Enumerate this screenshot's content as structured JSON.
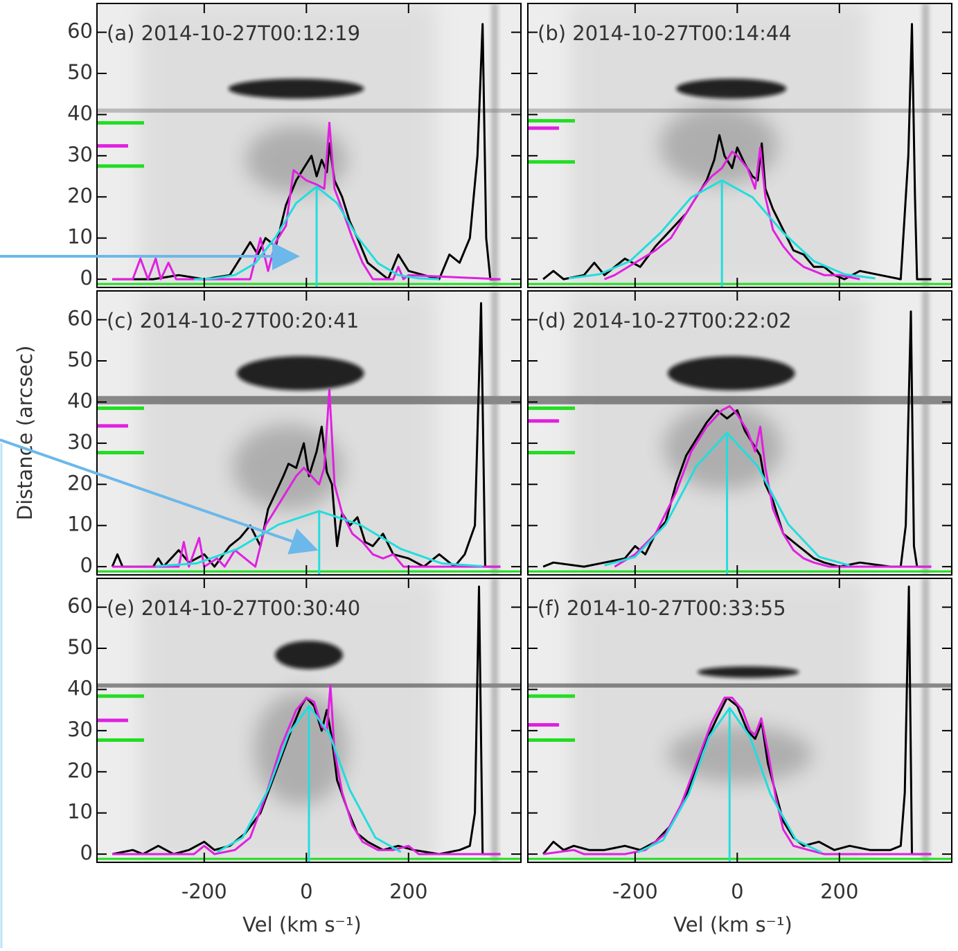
{
  "chart_data": [
    {
      "type": "line",
      "title": "(a)  2014-10-27T00:12:19",
      "xlim": [
        -410,
        420
      ],
      "ylim": [
        -2,
        67
      ],
      "xticks": [
        -200,
        0,
        200
      ],
      "yticks": [
        0,
        10,
        20,
        30,
        40,
        50,
        60
      ],
      "series": [
        {
          "color": "#000000",
          "x": [
            -380,
            -300,
            -250,
            -200,
            -150,
            -130,
            -110,
            -95,
            -80,
            -60,
            -40,
            -20,
            0,
            10,
            20,
            30,
            40,
            45,
            55,
            70,
            85,
            100,
            120,
            140,
            160,
            180,
            200,
            230,
            260,
            280,
            300,
            320,
            335,
            345,
            352,
            360,
            380
          ],
          "values": [
            0,
            0,
            1,
            0,
            1,
            5,
            9,
            6,
            10,
            8,
            18,
            24,
            28,
            30,
            25,
            29,
            26,
            33,
            24,
            20,
            14,
            10,
            4,
            2,
            0,
            6,
            2,
            1,
            0,
            6,
            4,
            10,
            30,
            62,
            10,
            0,
            0
          ]
        },
        {
          "color": "#e020e0",
          "x": [
            -380,
            -340,
            -325,
            -310,
            -295,
            -285,
            -270,
            -255,
            -110,
            -90,
            -75,
            -60,
            -40,
            -25,
            0,
            20,
            35,
            45,
            55,
            70,
            90,
            110,
            130,
            170,
            180,
            190,
            200,
            380
          ],
          "values": [
            0,
            0,
            5,
            0,
            5,
            0,
            4,
            0,
            0,
            10,
            2,
            9,
            13,
            26.5,
            24,
            23,
            22,
            38,
            22,
            17,
            10,
            4,
            0,
            0,
            3,
            0,
            1,
            0
          ]
        },
        {
          "color": "#22dddd",
          "x": [
            -220,
            -180,
            -140,
            -100,
            -60,
            -20,
            20,
            60,
            100,
            140,
            180,
            220,
            260
          ],
          "values": [
            0,
            0.2,
            1,
            3.9,
            10.3,
            18.5,
            22.5,
            18.5,
            10.3,
            3.9,
            1,
            0.2,
            0
          ]
        }
      ],
      "peak_x": 20,
      "peak_y": 22.5,
      "ref_lines": [
        {
          "color": "#22dd22",
          "y": 38
        },
        {
          "color": "#e020e0",
          "y": 32.4
        },
        {
          "color": "#22dd22",
          "y": 27.5
        }
      ]
    },
    {
      "type": "line",
      "title": "(b)  2014-10-27T00:14:44",
      "xlim": [
        -410,
        420
      ],
      "ylim": [
        -2,
        67
      ],
      "xticks": [
        -200,
        0,
        200
      ],
      "yticks": [
        0,
        10,
        20,
        30,
        40,
        50,
        60
      ],
      "series": [
        {
          "color": "#000000",
          "x": [
            -380,
            -360,
            -340,
            -300,
            -280,
            -260,
            -220,
            -190,
            -160,
            -130,
            -100,
            -80,
            -60,
            -45,
            -35,
            -25,
            -10,
            0,
            15,
            30,
            40,
            48,
            55,
            70,
            90,
            110,
            130,
            150,
            170,
            190,
            210,
            240,
            280,
            320,
            335,
            342,
            348,
            352,
            380
          ],
          "values": [
            0,
            2,
            0,
            1,
            4,
            1,
            5,
            3,
            8,
            12,
            16,
            20,
            24,
            29,
            35,
            30,
            27,
            32,
            28,
            25,
            24,
            33,
            22,
            17,
            12,
            7,
            6,
            3,
            3,
            1,
            0,
            2,
            1,
            0,
            30,
            62,
            20,
            0,
            0
          ]
        },
        {
          "color": "#e020e0",
          "x": [
            -260,
            -240,
            -200,
            -160,
            -130,
            -100,
            -70,
            -50,
            -30,
            -10,
            0,
            20,
            35,
            45,
            55,
            70,
            90,
            110,
            130,
            150,
            170,
            200,
            240
          ],
          "values": [
            0,
            1,
            4,
            7,
            10,
            16,
            22,
            25,
            27,
            31,
            30,
            27,
            22,
            32,
            20,
            12,
            8,
            5,
            3,
            2,
            1,
            1,
            0
          ]
        },
        {
          "color": "#22dddd",
          "x": [
            -330,
            -270,
            -210,
            -150,
            -90,
            -30,
            30,
            90,
            150,
            210,
            270
          ],
          "values": [
            0.2,
            1.2,
            4.4,
            11.3,
            19.9,
            24,
            19.9,
            11.3,
            4.4,
            1.2,
            0.2
          ]
        }
      ],
      "peak_x": -30,
      "peak_y": 24,
      "ref_lines": [
        {
          "color": "#22dd22",
          "y": 38.5
        },
        {
          "color": "#e020e0",
          "y": 36.7
        },
        {
          "color": "#22dd22",
          "y": 28.5
        }
      ]
    },
    {
      "type": "line",
      "title": "(c)  2014-10-27T00:20:41",
      "xlim": [
        -410,
        420
      ],
      "ylim": [
        -2,
        67
      ],
      "xticks": [
        -200,
        0,
        200
      ],
      "yticks": [
        0,
        10,
        20,
        30,
        40,
        50,
        60
      ],
      "ylabel": "Distance (arcsec)",
      "series": [
        {
          "color": "#000000",
          "x": [
            -380,
            -370,
            -360,
            -300,
            -290,
            -280,
            -250,
            -230,
            -200,
            -180,
            -150,
            -130,
            -110,
            -90,
            -75,
            -60,
            -45,
            -35,
            -20,
            -5,
            5,
            20,
            30,
            40,
            50,
            60,
            70,
            85,
            100,
            115,
            130,
            150,
            170,
            200,
            230,
            260,
            290,
            310,
            330,
            342,
            350,
            380
          ],
          "values": [
            0,
            3,
            0,
            0,
            2,
            0,
            4,
            1,
            3,
            0,
            5,
            7,
            10,
            5,
            14,
            18,
            22,
            25,
            24,
            30,
            22,
            28,
            34,
            23,
            20,
            5,
            13,
            10,
            12,
            6,
            5,
            8,
            3,
            2,
            0,
            3,
            0,
            3,
            10,
            64,
            0,
            0
          ]
        },
        {
          "color": "#e020e0",
          "x": [
            -380,
            -250,
            -240,
            -230,
            -210,
            -200,
            -175,
            -160,
            -140,
            -120,
            -100,
            -80,
            -60,
            -40,
            -20,
            -5,
            10,
            25,
            35,
            45,
            55,
            70,
            90,
            110,
            130,
            150,
            170,
            190,
            380
          ],
          "values": [
            0,
            0,
            6,
            0,
            7,
            0,
            2,
            0,
            4,
            2,
            0,
            10,
            14,
            18,
            22,
            24,
            22,
            20,
            24,
            43,
            20,
            13,
            8,
            6,
            3,
            2,
            3,
            0,
            0
          ]
        },
        {
          "color": "#22dddd",
          "x": [
            -295,
            -215,
            -135,
            -55,
            25,
            105,
            185,
            265,
            345
          ],
          "values": [
            0.1,
            0.8,
            4.3,
            10.2,
            13.5,
            10.2,
            4.3,
            0.8,
            0.1
          ]
        }
      ],
      "peak_x": 25,
      "peak_y": 13.5,
      "ref_lines": [
        {
          "color": "#22dd22",
          "y": 38.5
        },
        {
          "color": "#e020e0",
          "y": 34.2
        },
        {
          "color": "#22dd22",
          "y": 27.7
        }
      ]
    },
    {
      "type": "line",
      "title": "(d)  2014-10-27T00:22:02",
      "xlim": [
        -410,
        420
      ],
      "ylim": [
        -2,
        67
      ],
      "xticks": [
        -200,
        0,
        200
      ],
      "yticks": [
        0,
        10,
        20,
        30,
        40,
        50,
        60
      ],
      "series": [
        {
          "color": "#000000",
          "x": [
            -380,
            -360,
            -300,
            -260,
            -220,
            -200,
            -180,
            -160,
            -140,
            -120,
            -100,
            -80,
            -60,
            -40,
            -20,
            0,
            15,
            30,
            45,
            55,
            70,
            90,
            110,
            130,
            150,
            170,
            200,
            240,
            300,
            320,
            330,
            340,
            346,
            352,
            380
          ],
          "values": [
            0,
            1,
            0,
            1,
            2,
            5,
            3,
            8,
            11,
            20,
            27,
            31,
            35,
            38,
            36,
            38,
            33,
            30,
            27,
            20,
            16,
            8,
            6,
            4,
            2,
            1,
            0,
            1,
            0,
            0,
            10,
            62,
            5,
            0,
            0
          ]
        },
        {
          "color": "#e020e0",
          "x": [
            -240,
            -200,
            -160,
            -120,
            -90,
            -60,
            -30,
            -15,
            0,
            20,
            35,
            45,
            55,
            70,
            90,
            110,
            130,
            150,
            180,
            380
          ],
          "values": [
            0,
            3,
            8,
            18,
            28,
            34,
            38,
            39,
            37,
            33,
            28,
            34,
            24,
            14,
            8,
            4,
            2,
            1,
            0,
            0
          ]
        },
        {
          "color": "#22dddd",
          "x": [
            -260,
            -200,
            -140,
            -80,
            -20,
            40,
            100,
            160,
            220
          ],
          "values": [
            0.3,
            2.4,
            10.3,
            24.4,
            32.5,
            24.4,
            10.3,
            2.4,
            0.3
          ]
        }
      ],
      "peak_x": -20,
      "peak_y": 32.5,
      "ref_lines": [
        {
          "color": "#22dd22",
          "y": 38.5
        },
        {
          "color": "#e020e0",
          "y": 35.4
        },
        {
          "color": "#22dd22",
          "y": 27.7
        }
      ]
    },
    {
      "type": "line",
      "title": "(e)  2014-10-27T00:30:40",
      "xlim": [
        -410,
        420
      ],
      "ylim": [
        -2,
        67
      ],
      "xticks": [
        -200,
        0,
        200
      ],
      "yticks": [
        0,
        10,
        20,
        30,
        40,
        50,
        60
      ],
      "xlabel": "Vel (km s⁻¹)",
      "series": [
        {
          "color": "#000000",
          "x": [
            -380,
            -340,
            -320,
            -290,
            -260,
            -230,
            -200,
            -180,
            -150,
            -120,
            -90,
            -60,
            -30,
            -10,
            0,
            15,
            30,
            40,
            50,
            60,
            80,
            100,
            120,
            150,
            180,
            210,
            260,
            300,
            320,
            330,
            338,
            345,
            380
          ],
          "values": [
            0,
            1,
            0,
            2,
            0,
            1,
            3,
            1,
            2,
            5,
            10,
            20,
            30,
            36,
            38,
            36,
            30,
            35,
            28,
            18,
            11,
            5,
            3,
            1,
            2,
            1,
            0,
            1,
            2,
            10,
            65,
            0,
            0
          ]
        },
        {
          "color": "#e020e0",
          "x": [
            -380,
            -220,
            -200,
            -180,
            -140,
            -110,
            -80,
            -50,
            -20,
            0,
            15,
            30,
            40,
            47,
            55,
            70,
            90,
            110,
            140,
            170,
            200,
            220,
            380
          ],
          "values": [
            0,
            0,
            2,
            0,
            1,
            4,
            14,
            26,
            35,
            38,
            37,
            31,
            30,
            41,
            25,
            15,
            7,
            3,
            1,
            1,
            2,
            0,
            0
          ]
        },
        {
          "color": "#22dddd",
          "x": [
            -175,
            -125,
            -75,
            -35,
            5,
            45,
            85,
            135,
            185
          ],
          "values": [
            0.5,
            4,
            15.6,
            29.2,
            36,
            29.2,
            15.6,
            4,
            0.5
          ]
        }
      ],
      "peak_x": 5,
      "peak_y": 36,
      "ref_lines": [
        {
          "color": "#22dd22",
          "y": 38.4
        },
        {
          "color": "#e020e0",
          "y": 32.5
        },
        {
          "color": "#22dd22",
          "y": 27.7
        }
      ]
    },
    {
      "type": "line",
      "title": "(f)  2014-10-27T00:33:55",
      "xlim": [
        -410,
        420
      ],
      "ylim": [
        -2,
        67
      ],
      "xticks": [
        -200,
        0,
        200
      ],
      "yticks": [
        0,
        10,
        20,
        30,
        40,
        50,
        60
      ],
      "xlabel": "Vel (km s⁻¹)",
      "series": [
        {
          "color": "#000000",
          "x": [
            -380,
            -360,
            -340,
            -320,
            -290,
            -260,
            -220,
            -190,
            -160,
            -130,
            -100,
            -70,
            -40,
            -20,
            0,
            20,
            35,
            48,
            60,
            75,
            90,
            110,
            130,
            160,
            190,
            220,
            260,
            300,
            320,
            328,
            336,
            342,
            380
          ],
          "values": [
            0,
            3,
            1,
            2,
            1,
            1,
            2,
            1,
            3,
            7,
            14,
            25,
            33,
            38,
            36,
            30,
            28,
            32,
            22,
            15,
            8,
            4,
            2,
            3,
            1,
            2,
            1,
            1,
            2,
            15,
            65,
            0,
            0
          ]
        },
        {
          "color": "#e020e0",
          "x": [
            -380,
            -320,
            -300,
            -220,
            -180,
            -140,
            -110,
            -80,
            -50,
            -25,
            -10,
            10,
            25,
            35,
            47,
            60,
            75,
            90,
            110,
            140,
            170,
            380
          ],
          "values": [
            0,
            1,
            0,
            0,
            1,
            5,
            12,
            22,
            32,
            38,
            38,
            35,
            30,
            29,
            33,
            25,
            14,
            6,
            2,
            1,
            0,
            0
          ]
        },
        {
          "color": "#22dddd",
          "x": [
            -195,
            -145,
            -95,
            -55,
            -15,
            25,
            65,
            115,
            165
          ],
          "values": [
            0.4,
            3.4,
            14.6,
            28.5,
            35.5,
            28.5,
            14.6,
            3.4,
            0.4
          ]
        }
      ],
      "peak_x": -15,
      "peak_y": 35.5,
      "ref_lines": [
        {
          "color": "#22dd22",
          "y": 38.4
        },
        {
          "color": "#e020e0",
          "y": 31.4
        },
        {
          "color": "#22dd22",
          "y": 27.7
        }
      ]
    }
  ]
}
